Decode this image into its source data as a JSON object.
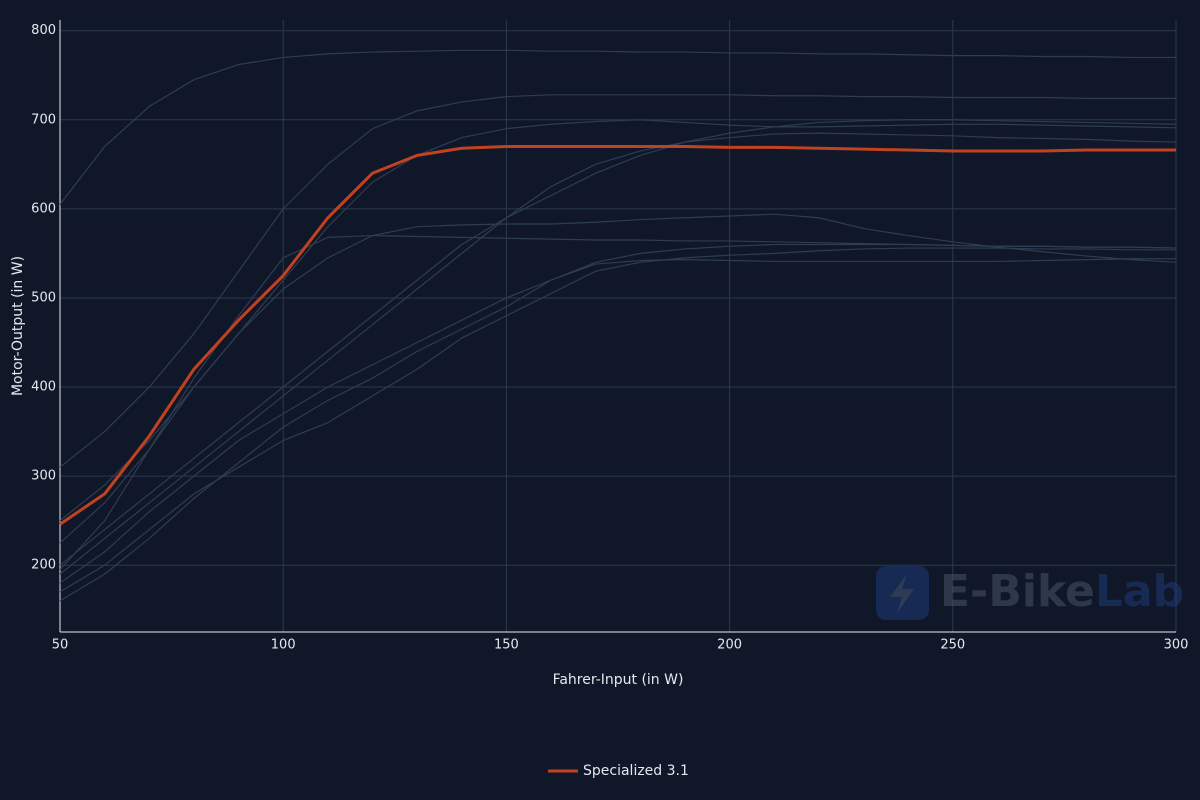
{
  "chart_data": {
    "type": "line",
    "x_label": "Fahrer-Input (in W)",
    "y_label": "Motor-Output (in W)",
    "watermark": [
      "E-Bike",
      "Lab"
    ],
    "x": [
      50,
      60,
      70,
      80,
      90,
      100,
      110,
      120,
      130,
      140,
      150,
      160,
      170,
      180,
      190,
      200,
      210,
      220,
      230,
      240,
      250,
      260,
      270,
      280,
      290,
      300
    ],
    "xlim": [
      50,
      300
    ],
    "xticks": [
      50,
      100,
      150,
      200,
      250,
      300
    ],
    "ylim": [
      125,
      812
    ],
    "yticks": [
      200,
      300,
      400,
      500,
      600,
      700,
      800
    ],
    "grid": true,
    "legend": "bottom",
    "series": [
      {
        "color": "#2f3d52",
        "values": [
          605,
          670,
          715,
          745,
          762,
          770,
          774,
          776,
          777,
          778,
          778,
          777,
          777,
          776,
          776,
          775,
          775,
          774,
          774,
          773,
          772,
          772,
          771,
          771,
          770,
          770
        ]
      },
      {
        "color": "#2f3d52",
        "values": [
          310,
          350,
          400,
          460,
          530,
          600,
          650,
          690,
          710,
          720,
          726,
          728,
          728,
          728,
          728,
          728,
          727,
          727,
          726,
          726,
          725,
          725,
          725,
          724,
          724,
          724
        ]
      },
      {
        "color": "#2f3d52",
        "values": [
          250,
          290,
          340,
          400,
          460,
          520,
          580,
          630,
          660,
          680,
          690,
          695,
          698,
          700,
          697,
          694,
          692,
          692,
          693,
          694,
          695,
          695,
          694,
          693,
          692,
          691
        ]
      },
      {
        "color": "#2f3d52",
        "values": [
          195,
          250,
          330,
          410,
          480,
          545,
          568,
          570,
          569,
          568,
          567,
          566,
          565,
          565,
          564,
          564,
          563,
          562,
          561,
          560,
          559,
          558,
          558,
          557,
          557,
          556
        ]
      },
      {
        "color": "#2f3d52",
        "values": [
          225,
          270,
          330,
          400,
          460,
          510,
          545,
          570,
          580,
          582,
          583,
          583,
          585,
          588,
          590,
          592,
          594,
          590,
          578,
          570,
          563,
          557,
          552,
          547,
          543,
          540
        ]
      },
      {
        "color": "#2f3d52",
        "values": [
          200,
          240,
          280,
          320,
          360,
          400,
          440,
          480,
          520,
          560,
          590,
          615,
          640,
          660,
          675,
          685,
          692,
          697,
          699,
          700,
          700,
          699,
          698,
          697,
          696,
          695
        ]
      },
      {
        "color": "#2f3d52",
        "values": [
          190,
          230,
          270,
          310,
          350,
          390,
          430,
          470,
          510,
          550,
          590,
          625,
          650,
          665,
          675,
          680,
          684,
          685,
          684,
          683,
          682,
          680,
          679,
          678,
          676,
          675
        ]
      },
      {
        "color": "#2f3d52",
        "values": [
          180,
          215,
          260,
          300,
          340,
          370,
          400,
          425,
          450,
          475,
          500,
          520,
          540,
          550,
          555,
          558,
          560,
          560,
          560,
          560,
          559,
          558,
          558,
          557,
          557,
          556
        ]
      },
      {
        "color": "#2f3d52",
        "values": [
          160,
          190,
          230,
          275,
          315,
          355,
          385,
          410,
          440,
          465,
          490,
          520,
          538,
          542,
          543,
          542,
          541,
          541,
          541,
          541,
          541,
          541,
          542,
          543,
          544,
          544
        ]
      },
      {
        "color": "#2f3d52",
        "values": [
          170,
          200,
          240,
          280,
          310,
          340,
          360,
          390,
          420,
          455,
          480,
          505,
          530,
          540,
          545,
          548,
          550,
          553,
          555,
          556,
          556,
          556,
          555,
          555,
          554,
          554
        ]
      },
      {
        "name": "Specialized 3.1",
        "color": "#c2421f",
        "values": [
          246,
          280,
          345,
          420,
          475,
          525,
          590,
          640,
          660,
          668,
          670,
          670,
          670,
          670,
          670,
          669,
          669,
          668,
          667,
          666,
          665,
          665,
          665,
          666,
          666,
          666
        ]
      }
    ]
  }
}
